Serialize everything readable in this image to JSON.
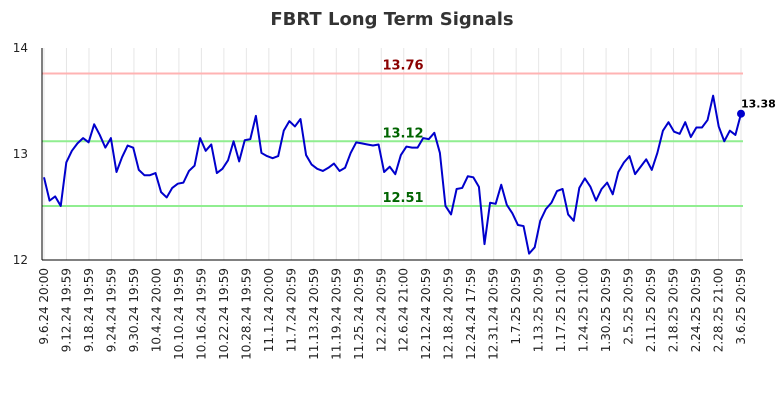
{
  "chart_data": {
    "type": "line",
    "title": "FBRT Long Term Signals",
    "xlabel": "",
    "ylabel": "",
    "ylim": [
      12,
      14
    ],
    "yticks": [
      12,
      13,
      14
    ],
    "grid": "vertical",
    "xtick_labels": [
      "9.6.24 20:00",
      "9.12.24 19:59",
      "9.18.24 19:59",
      "9.24.24 19:59",
      "9.30.24 19:59",
      "10.4.24 20:00",
      "10.10.24 19:59",
      "10.16.24 19:59",
      "10.22.24 19:59",
      "10.28.24 19:59",
      "11.1.24 20:00",
      "11.7.24 20:59",
      "11.13.24 20:59",
      "11.19.24 20:59",
      "11.25.24 20:59",
      "12.2.24 20:59",
      "12.6.24 21:00",
      "12.12.24 20:59",
      "12.18.24 20:59",
      "12.24.24 17:59",
      "12.31.24 20:59",
      "1.7.25 20:59",
      "1.13.25 20:59",
      "1.17.25 21:00",
      "1.24.25 21:00",
      "1.30.25 20:59",
      "2.5.25 20:59",
      "2.11.25 20:59",
      "2.18.25 20:59",
      "2.24.25 20:59",
      "2.28.25 21:00",
      "3.6.25 20:59"
    ],
    "series": [
      {
        "color": "#0000cc",
        "values": [
          12.78,
          12.56,
          12.6,
          12.51,
          12.92,
          13.03,
          13.1,
          13.15,
          13.11,
          13.28,
          13.18,
          13.06,
          13.15,
          12.83,
          12.97,
          13.08,
          13.06,
          12.85,
          12.8,
          12.8,
          12.82,
          12.64,
          12.59,
          12.68,
          12.72,
          12.73,
          12.84,
          12.89,
          13.15,
          13.03,
          13.09,
          12.82,
          12.86,
          12.94,
          13.12,
          12.93,
          13.13,
          13.14,
          13.36,
          13.01,
          12.98,
          12.96,
          12.98,
          13.22,
          13.31,
          13.26,
          13.33,
          12.99,
          12.9,
          12.86,
          12.84,
          12.87,
          12.91,
          12.84,
          12.87,
          13.01,
          13.11,
          13.1,
          13.09,
          13.08,
          13.09,
          12.83,
          12.88,
          12.81,
          12.99,
          13.07,
          13.06,
          13.06,
          13.15,
          13.14,
          13.2,
          13.01,
          12.51,
          12.43,
          12.67,
          12.68,
          12.79,
          12.78,
          12.69,
          12.15,
          12.54,
          12.53,
          12.71,
          12.52,
          12.44,
          12.33,
          12.32,
          12.06,
          12.12,
          12.37,
          12.48,
          12.54,
          12.65,
          12.67,
          12.43,
          12.37,
          12.68,
          12.77,
          12.69,
          12.56,
          12.67,
          12.73,
          12.62,
          12.83,
          12.92,
          12.98,
          12.81,
          12.88,
          12.95,
          12.85,
          13.01,
          13.22,
          13.3,
          13.21,
          13.19,
          13.3,
          13.16,
          13.25,
          13.25,
          13.32,
          13.55,
          13.26,
          13.12,
          13.22,
          13.18,
          13.38
        ]
      }
    ],
    "reference_lines": [
      {
        "value": 13.76,
        "label": "13.76",
        "line_color": "#ffb3b3",
        "label_color": "#8b0000"
      },
      {
        "value": 13.12,
        "label": "13.12",
        "line_color": "#90ee90",
        "label_color": "#006400"
      },
      {
        "value": 12.51,
        "label": "12.51",
        "line_color": "#90ee90",
        "label_color": "#006400"
      }
    ],
    "last_value_label": "13.38"
  }
}
